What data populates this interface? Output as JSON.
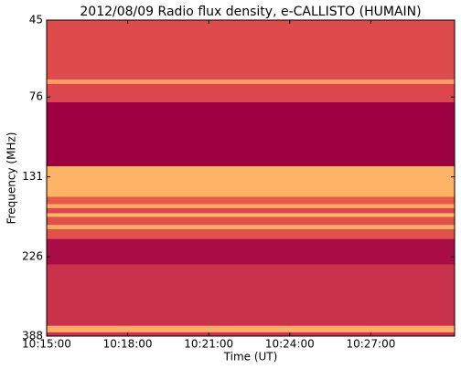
{
  "chart_data": {
    "type": "spectrogram",
    "title": "2012/08/09  Radio flux density, e-CALLISTO (HUMAIN)",
    "xlabel": "Time (UT)",
    "ylabel": "Frequency (MHz)",
    "xlim": [
      "10:15:00",
      "10:30:06"
    ],
    "xticks": [
      "10:15:00",
      "10:18:00",
      "10:21:00",
      "10:24:00",
      "10:27:00"
    ],
    "ylim": [
      45,
      388
    ],
    "yticks": [
      45,
      76,
      131,
      226,
      388
    ],
    "ylog": true,
    "yinverted": true,
    "colormap": [
      "#9e0142",
      "#d53e4f",
      "#f46d43",
      "#fdae61",
      "#fee08b"
    ],
    "bands": [
      {
        "from": 45,
        "to": 67.5,
        "level": 0.32
      },
      {
        "from": 67.5,
        "to": 69.5,
        "level": 0.7
      },
      {
        "from": 69.5,
        "to": 78.8,
        "level": 0.3
      },
      {
        "from": 78.8,
        "to": 122,
        "level": 0
      },
      {
        "from": 122,
        "to": 150,
        "level": 0.78
      },
      {
        "from": 150,
        "to": 158,
        "level": 0.4
      },
      {
        "from": 158,
        "to": 162,
        "level": 0.75
      },
      {
        "from": 162,
        "to": 168,
        "level": 0.3
      },
      {
        "from": 168,
        "to": 172,
        "level": 0.8
      },
      {
        "from": 172,
        "to": 182,
        "level": 0.35
      },
      {
        "from": 182,
        "to": 187,
        "level": 0.75
      },
      {
        "from": 187,
        "to": 200,
        "level": 0.35
      },
      {
        "from": 200,
        "to": 238,
        "level": 0.05
      },
      {
        "from": 238,
        "to": 362,
        "level": 0.2
      },
      {
        "from": 362,
        "to": 378,
        "level": 0.75
      },
      {
        "from": 378,
        "to": 388,
        "level": 0.2
      }
    ]
  }
}
